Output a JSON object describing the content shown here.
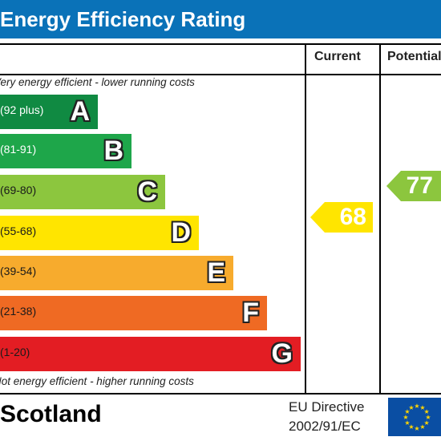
{
  "header": {
    "title": "Energy Efficiency Rating"
  },
  "columns": {
    "current": "Current",
    "potential": "Potential"
  },
  "notes": {
    "top": "Very energy efficient - lower running costs",
    "bottom": "Not energy efficient - higher running costs"
  },
  "chart_data": {
    "type": "bar",
    "title": "Energy Efficiency Rating",
    "bands": [
      {
        "letter": "A",
        "range": "(92 plus)",
        "min": 92,
        "max": 100,
        "color": "#108a42"
      },
      {
        "letter": "B",
        "range": "(81-91)",
        "min": 81,
        "max": 91,
        "color": "#1ea64a"
      },
      {
        "letter": "C",
        "range": "(69-80)",
        "min": 69,
        "max": 80,
        "color": "#8cc63e"
      },
      {
        "letter": "D",
        "range": "(55-68)",
        "min": 55,
        "max": 68,
        "color": "#ffe500"
      },
      {
        "letter": "E",
        "range": "(39-54)",
        "min": 39,
        "max": 54,
        "color": "#f7ab2d"
      },
      {
        "letter": "F",
        "range": "(21-38)",
        "min": 21,
        "max": 38,
        "color": "#ef6a23"
      },
      {
        "letter": "G",
        "range": "(1-20)",
        "min": 1,
        "max": 20,
        "color": "#e31d23"
      }
    ],
    "current": {
      "value": 68,
      "band": "D",
      "color": "#ffe500"
    },
    "potential": {
      "value": 77,
      "band": "C",
      "color": "#8cc63e"
    }
  },
  "footer": {
    "region": "Scotland",
    "directive_line1": "EU Directive",
    "directive_line2": "2002/91/EC",
    "flag": "eu-flag-icon"
  }
}
